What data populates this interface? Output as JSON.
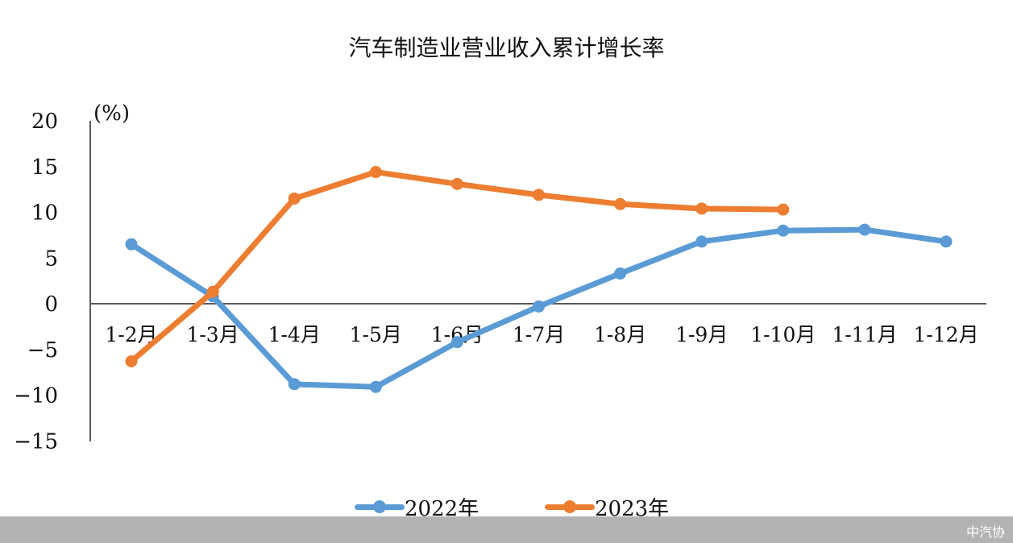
{
  "chart_data": {
    "type": "line",
    "title": "汽车制造业营业收入累计增长率",
    "ylabel": "(%)",
    "xlabel": "",
    "ylim": [
      -15,
      20
    ],
    "yticks": [
      20,
      15,
      10,
      5,
      0,
      -5,
      -10,
      -15
    ],
    "negative_tick_color": "#e00000",
    "grid": false,
    "legend_position": "bottom",
    "categories": [
      "1-2月",
      "1-3月",
      "1-4月",
      "1-5月",
      "1-6月",
      "1-7月",
      "1-8月",
      "1-9月",
      "1-10月",
      "1-11月",
      "1-12月"
    ],
    "series": [
      {
        "name": "2022年",
        "color": "#5b9bd5",
        "values": [
          6.5,
          0.8,
          -8.8,
          -9.1,
          -4.2,
          -0.3,
          3.3,
          6.8,
          8.0,
          8.1,
          6.8
        ]
      },
      {
        "name": "2023年",
        "color": "#ed7d31",
        "values": [
          -6.3,
          1.3,
          11.5,
          14.4,
          13.1,
          11.9,
          10.9,
          10.4,
          10.3,
          null,
          null
        ]
      }
    ]
  },
  "footer": {
    "watermark": "中汽协"
  }
}
